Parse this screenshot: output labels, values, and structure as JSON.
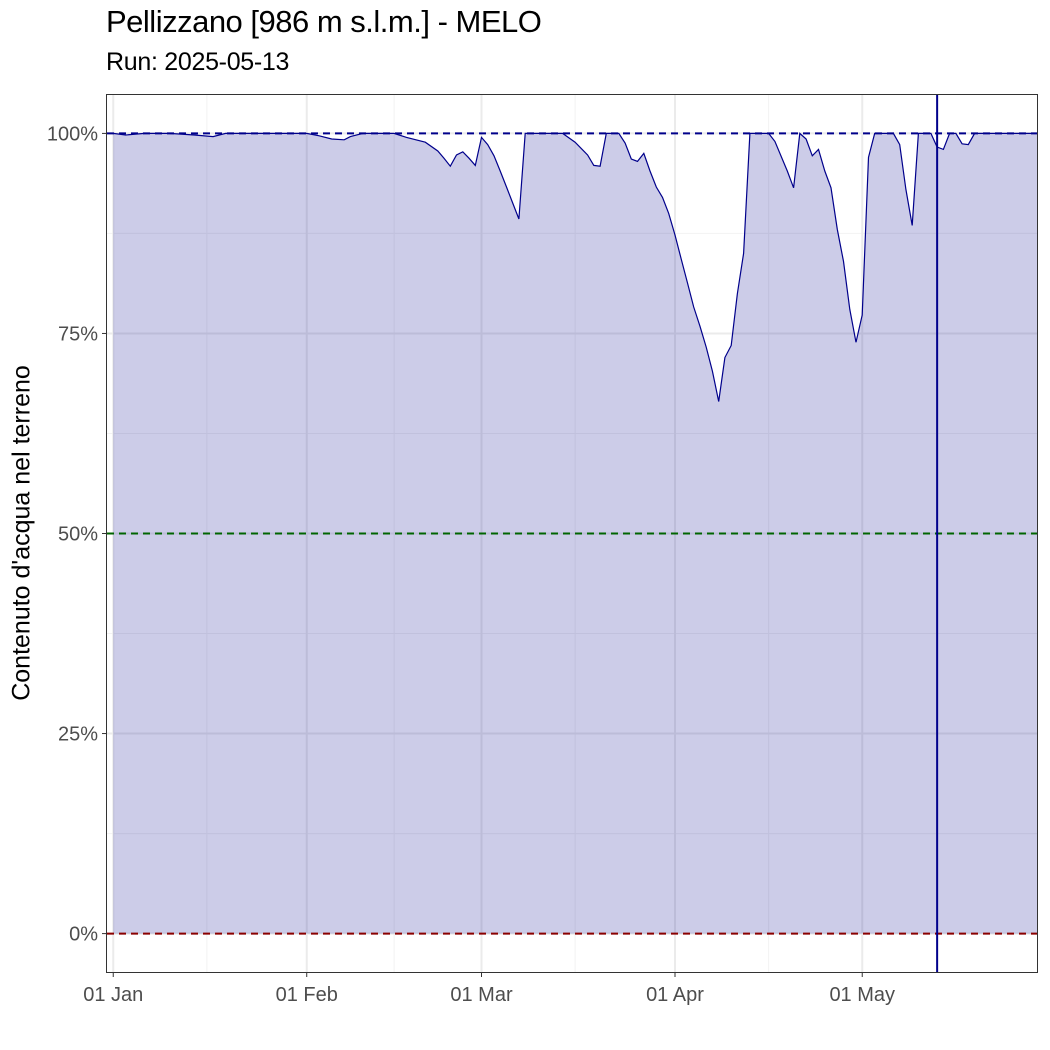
{
  "chart_data": {
    "type": "area",
    "title": "Pellizzano [986 m s.l.m.] - MELO",
    "subtitle": "Run: 2025-05-13",
    "ylabel": "Contenuto d'acqua nel terreno",
    "xlabel": "",
    "x_range": [
      "2024-12-31",
      "2025-05-29"
    ],
    "ylim": [
      -0.048,
      1.048
    ],
    "y_ticks": [
      {
        "value": 0,
        "label": "0%"
      },
      {
        "value": 0.25,
        "label": "25%"
      },
      {
        "value": 0.5,
        "label": "50%"
      },
      {
        "value": 0.75,
        "label": "75%"
      },
      {
        "value": 1.0,
        "label": "100%"
      }
    ],
    "x_ticks": [
      {
        "date": "2025-01-01",
        "label": "01 Jan"
      },
      {
        "date": "2025-02-01",
        "label": "01 Feb"
      },
      {
        "date": "2025-03-01",
        "label": "01 Mar"
      },
      {
        "date": "2025-04-01",
        "label": "01 Apr"
      },
      {
        "date": "2025-05-01",
        "label": "01 May"
      }
    ],
    "x_minor_ticks": [
      "2025-01-16",
      "2025-02-15",
      "2025-03-16",
      "2025-04-16"
    ],
    "grid": true,
    "reference_lines": [
      {
        "y": 1.0,
        "style": "dashed",
        "color": "#00008b"
      },
      {
        "y": 0.5,
        "style": "dashed",
        "color": "#006400"
      },
      {
        "y": 0.0,
        "style": "dashed",
        "color": "#8b0000"
      }
    ],
    "run_date_line": {
      "date": "2025-05-13",
      "color": "#00008b"
    },
    "series": [
      {
        "x": [
          "2025-01-01",
          "2025-01-03",
          "2025-01-06",
          "2025-01-10",
          "2025-01-14",
          "2025-01-17",
          "2025-01-19",
          "2025-01-22",
          "2025-01-27",
          "2025-02-01",
          "2025-02-03",
          "2025-02-05",
          "2025-02-07",
          "2025-02-08",
          "2025-02-10",
          "2025-02-13",
          "2025-02-15",
          "2025-02-17",
          "2025-02-20",
          "2025-02-22",
          "2025-02-23",
          "2025-02-24",
          "2025-02-25",
          "2025-02-26",
          "2025-02-27",
          "2025-02-28",
          "2025-03-01",
          "2025-03-02",
          "2025-03-03",
          "2025-03-04",
          "2025-03-05",
          "2025-03-06",
          "2025-03-07",
          "2025-03-08",
          "2025-03-09",
          "2025-03-10",
          "2025-03-11",
          "2025-03-12",
          "2025-03-14",
          "2025-03-16",
          "2025-03-18",
          "2025-03-19",
          "2025-03-20",
          "2025-03-21",
          "2025-03-22",
          "2025-03-23",
          "2025-03-24",
          "2025-03-25",
          "2025-03-26",
          "2025-03-27",
          "2025-03-28",
          "2025-03-29",
          "2025-03-30",
          "2025-03-31",
          "2025-04-01",
          "2025-04-02",
          "2025-04-03",
          "2025-04-04",
          "2025-04-05",
          "2025-04-06",
          "2025-04-07",
          "2025-04-08",
          "2025-04-09",
          "2025-04-10",
          "2025-04-11",
          "2025-04-12",
          "2025-04-13",
          "2025-04-14",
          "2025-04-15",
          "2025-04-16",
          "2025-04-17",
          "2025-04-19",
          "2025-04-20",
          "2025-04-21",
          "2025-04-22",
          "2025-04-23",
          "2025-04-24",
          "2025-04-25",
          "2025-04-26",
          "2025-04-27",
          "2025-04-28",
          "2025-04-29",
          "2025-04-30",
          "2025-05-01",
          "2025-05-02",
          "2025-05-03",
          "2025-05-04",
          "2025-05-05",
          "2025-05-06",
          "2025-05-07",
          "2025-05-08",
          "2025-05-09",
          "2025-05-10",
          "2025-05-11",
          "2025-05-12",
          "2025-05-13",
          "2025-05-14",
          "2025-05-15",
          "2025-05-16",
          "2025-05-17",
          "2025-05-18",
          "2025-05-19",
          "2025-05-20",
          "2025-05-21",
          "2025-05-22",
          "2025-05-23",
          "2025-05-24",
          "2025-05-26",
          "2025-05-29"
        ],
        "y": [
          1.0,
          0.998,
          1.0,
          1.0,
          0.998,
          0.996,
          1.0,
          1.0,
          1.0,
          1.0,
          0.997,
          0.993,
          0.992,
          0.996,
          1.0,
          1.0,
          1.0,
          0.995,
          0.989,
          0.978,
          0.969,
          0.959,
          0.973,
          0.977,
          0.969,
          0.96,
          0.995,
          0.986,
          0.972,
          0.953,
          0.933,
          0.913,
          0.893,
          1.0,
          1.0,
          1.0,
          1.0,
          1.0,
          1.0,
          0.989,
          0.973,
          0.96,
          0.959,
          1.0,
          1.0,
          1.0,
          0.988,
          0.968,
          0.965,
          0.975,
          0.953,
          0.933,
          0.92,
          0.9,
          0.873,
          0.843,
          0.813,
          0.783,
          0.759,
          0.733,
          0.703,
          0.665,
          0.72,
          0.735,
          0.8,
          0.85,
          1.0,
          1.0,
          1.0,
          1.0,
          0.99,
          0.953,
          0.932,
          1.0,
          0.993,
          0.972,
          0.98,
          0.953,
          0.932,
          0.88,
          0.84,
          0.78,
          0.739,
          0.773,
          0.97,
          1.0,
          1.0,
          1.0,
          1.0,
          0.986,
          0.93,
          0.885,
          1.0,
          1.0,
          1.0,
          0.983,
          0.98,
          1.0,
          1.0,
          0.987,
          0.986,
          1.0,
          1.0,
          1.0,
          1.0,
          1.0,
          1.0,
          1.0,
          1.0
        ]
      }
    ],
    "colors": {
      "area_fill": "#ccccE8",
      "line": "#00008b",
      "grid": "#ebebeb",
      "panel_border": "#333333"
    }
  }
}
